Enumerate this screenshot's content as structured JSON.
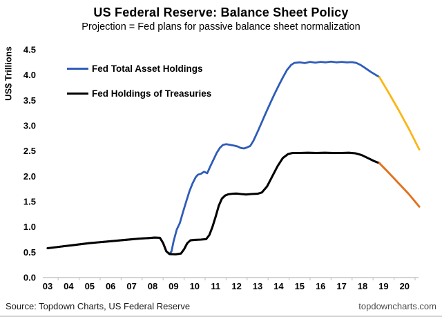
{
  "footer": {
    "source": "Source: Topdown Charts, US Federal Reserve",
    "website": "topdowncharts.com"
  },
  "chart_data": {
    "type": "line",
    "title": "US Federal Reserve: Balance Sheet Policy",
    "subtitle": "Projection = Fed plans for passive balance sheet normalization",
    "ylabel": "US$ Trillions",
    "xlabel": "",
    "ylim": [
      0,
      4.5
    ],
    "xlim": [
      2002.8,
      2020.8
    ],
    "grid": false,
    "legend_position": "top-left-inside",
    "y_ticks": [
      "0.0",
      "0.5",
      "1.0",
      "1.5",
      "2.0",
      "2.5",
      "3.0",
      "3.5",
      "4.0",
      "4.5"
    ],
    "x_ticks": [
      "03",
      "04",
      "05",
      "06",
      "07",
      "08",
      "09",
      "10",
      "11",
      "12",
      "13",
      "14",
      "15",
      "16",
      "17",
      "18",
      "19",
      "20"
    ],
    "x_tick_start_year": 2003,
    "axis_color": "#c6c6c6",
    "series": [
      {
        "name": "Fed Total Asset Holdings",
        "color": "#2E5CB8",
        "projection_color": "#FBB615",
        "actual": [
          [
            2003.0,
            0.58
          ],
          [
            2003.4,
            0.6
          ],
          [
            2003.8,
            0.62
          ],
          [
            2004.2,
            0.64
          ],
          [
            2004.6,
            0.66
          ],
          [
            2005.0,
            0.68
          ],
          [
            2005.4,
            0.695
          ],
          [
            2005.8,
            0.71
          ],
          [
            2006.2,
            0.725
          ],
          [
            2006.6,
            0.74
          ],
          [
            2007.0,
            0.755
          ],
          [
            2007.4,
            0.77
          ],
          [
            2007.8,
            0.78
          ],
          [
            2008.1,
            0.79
          ],
          [
            2008.35,
            0.785
          ],
          [
            2008.5,
            0.68
          ],
          [
            2008.65,
            0.52
          ],
          [
            2008.8,
            0.465
          ],
          [
            2008.9,
            0.52
          ],
          [
            2009.0,
            0.72
          ],
          [
            2009.15,
            0.95
          ],
          [
            2009.3,
            1.08
          ],
          [
            2009.45,
            1.3
          ],
          [
            2009.6,
            1.5
          ],
          [
            2009.75,
            1.7
          ],
          [
            2009.9,
            1.86
          ],
          [
            2010.05,
            1.98
          ],
          [
            2010.15,
            2.03
          ],
          [
            2010.3,
            2.05
          ],
          [
            2010.45,
            2.09
          ],
          [
            2010.6,
            2.06
          ],
          [
            2010.75,
            2.2
          ],
          [
            2010.9,
            2.33
          ],
          [
            2011.05,
            2.46
          ],
          [
            2011.2,
            2.56
          ],
          [
            2011.35,
            2.62
          ],
          [
            2011.5,
            2.635
          ],
          [
            2011.7,
            2.62
          ],
          [
            2011.9,
            2.605
          ],
          [
            2012.05,
            2.59
          ],
          [
            2012.2,
            2.56
          ],
          [
            2012.35,
            2.55
          ],
          [
            2012.5,
            2.57
          ],
          [
            2012.65,
            2.6
          ],
          [
            2012.8,
            2.7
          ],
          [
            2013.0,
            2.88
          ],
          [
            2013.2,
            3.07
          ],
          [
            2013.4,
            3.26
          ],
          [
            2013.6,
            3.44
          ],
          [
            2013.8,
            3.62
          ],
          [
            2014.0,
            3.79
          ],
          [
            2014.2,
            3.95
          ],
          [
            2014.4,
            4.1
          ],
          [
            2014.6,
            4.2
          ],
          [
            2014.75,
            4.24
          ],
          [
            2015.0,
            4.25
          ],
          [
            2015.25,
            4.235
          ],
          [
            2015.5,
            4.26
          ],
          [
            2015.75,
            4.245
          ],
          [
            2016.0,
            4.26
          ],
          [
            2016.25,
            4.25
          ],
          [
            2016.5,
            4.265
          ],
          [
            2016.75,
            4.25
          ],
          [
            2017.0,
            4.26
          ],
          [
            2017.25,
            4.25
          ],
          [
            2017.5,
            4.255
          ],
          [
            2017.7,
            4.24
          ],
          [
            2017.9,
            4.2
          ],
          [
            2018.15,
            4.13
          ],
          [
            2018.4,
            4.06
          ],
          [
            2018.6,
            4.01
          ],
          [
            2018.8,
            3.96
          ]
        ],
        "projection": [
          [
            2018.8,
            3.96
          ],
          [
            2019.2,
            3.68
          ],
          [
            2019.7,
            3.32
          ],
          [
            2020.2,
            2.94
          ],
          [
            2020.7,
            2.53
          ]
        ]
      },
      {
        "name": "Fed Holdings of Treasuries",
        "color": "#000000",
        "projection_color": "#E2711D",
        "actual": [
          [
            2003.0,
            0.58
          ],
          [
            2003.4,
            0.6
          ],
          [
            2003.8,
            0.62
          ],
          [
            2004.2,
            0.64
          ],
          [
            2004.6,
            0.66
          ],
          [
            2005.0,
            0.68
          ],
          [
            2005.4,
            0.695
          ],
          [
            2005.8,
            0.71
          ],
          [
            2006.2,
            0.725
          ],
          [
            2006.6,
            0.74
          ],
          [
            2007.0,
            0.755
          ],
          [
            2007.4,
            0.77
          ],
          [
            2007.8,
            0.78
          ],
          [
            2008.1,
            0.79
          ],
          [
            2008.35,
            0.785
          ],
          [
            2008.5,
            0.68
          ],
          [
            2008.65,
            0.52
          ],
          [
            2008.8,
            0.465
          ],
          [
            2009.1,
            0.46
          ],
          [
            2009.35,
            0.475
          ],
          [
            2009.5,
            0.56
          ],
          [
            2009.65,
            0.68
          ],
          [
            2009.8,
            0.735
          ],
          [
            2010.0,
            0.745
          ],
          [
            2010.3,
            0.75
          ],
          [
            2010.55,
            0.76
          ],
          [
            2010.7,
            0.84
          ],
          [
            2010.85,
            1.0
          ],
          [
            2011.0,
            1.2
          ],
          [
            2011.15,
            1.42
          ],
          [
            2011.3,
            1.56
          ],
          [
            2011.45,
            1.62
          ],
          [
            2011.6,
            1.645
          ],
          [
            2011.8,
            1.655
          ],
          [
            2012.0,
            1.66
          ],
          [
            2012.2,
            1.65
          ],
          [
            2012.45,
            1.64
          ],
          [
            2012.7,
            1.65
          ],
          [
            2013.0,
            1.655
          ],
          [
            2013.2,
            1.68
          ],
          [
            2013.45,
            1.8
          ],
          [
            2013.7,
            2.0
          ],
          [
            2013.95,
            2.2
          ],
          [
            2014.2,
            2.36
          ],
          [
            2014.45,
            2.44
          ],
          [
            2014.65,
            2.46
          ],
          [
            2015.0,
            2.462
          ],
          [
            2015.4,
            2.465
          ],
          [
            2015.8,
            2.46
          ],
          [
            2016.2,
            2.465
          ],
          [
            2016.6,
            2.46
          ],
          [
            2017.0,
            2.462
          ],
          [
            2017.35,
            2.465
          ],
          [
            2017.65,
            2.455
          ],
          [
            2017.95,
            2.42
          ],
          [
            2018.25,
            2.36
          ],
          [
            2018.55,
            2.3
          ],
          [
            2018.8,
            2.26
          ]
        ],
        "projection": [
          [
            2018.8,
            2.26
          ],
          [
            2019.2,
            2.09
          ],
          [
            2019.7,
            1.87
          ],
          [
            2020.2,
            1.65
          ],
          [
            2020.7,
            1.4
          ]
        ]
      }
    ]
  }
}
